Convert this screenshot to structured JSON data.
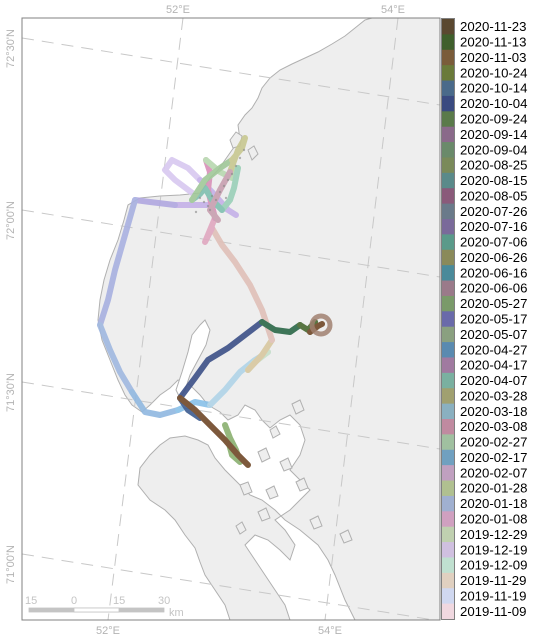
{
  "map": {
    "colors": {
      "water": "#ffffff",
      "land": "#eeeeee",
      "coast": "#b0b0b0",
      "grid": "#c8c8c8",
      "frame": "#808080"
    },
    "graticule": {
      "top": [
        "52°E",
        "54°E"
      ],
      "bottom": [
        "52°E",
        "54°E"
      ],
      "left": [
        "72°30'N",
        "72°00'N",
        "71°30'N",
        "71°00'N"
      ]
    },
    "scalebar": {
      "ticks": [
        "15",
        "0",
        "15",
        "30"
      ],
      "unit": "km"
    },
    "track": {
      "path_colors": [
        "#d8c8f0",
        "#c4b0e8",
        "#b0a8e0",
        "#a8b0e0",
        "#a0b8e0",
        "#90b8e0",
        "#88c0e8",
        "#b0d4e8",
        "#c8e0c8",
        "#d8c8a0",
        "#e0c0b8",
        "#e0a8c0",
        "#d890b8",
        "#b8d8b0",
        "#9ad0b8",
        "#80c0b0",
        "#a0c898",
        "#c8c890",
        "#c8a0b0",
        "#3c5088",
        "#3c5c90",
        "#2c6848",
        "#486830",
        "#704828"
      ],
      "end_marker_color": "#a08070"
    }
  },
  "legend": {
    "dates": [
      "2020-11-23",
      "2020-11-13",
      "2020-11-03",
      "2020-10-24",
      "2020-10-14",
      "2020-10-04",
      "2020-09-24",
      "2020-09-14",
      "2020-09-04",
      "2020-08-25",
      "2020-08-15",
      "2020-08-05",
      "2020-07-26",
      "2020-07-16",
      "2020-07-06",
      "2020-06-26",
      "2020-06-16",
      "2020-06-06",
      "2020-05-27",
      "2020-05-17",
      "2020-05-07",
      "2020-04-27",
      "2020-04-17",
      "2020-04-07",
      "2020-03-28",
      "2020-03-18",
      "2020-03-08",
      "2020-02-27",
      "2020-02-17",
      "2020-02-07",
      "2020-01-28",
      "2020-01-18",
      "2020-01-08",
      "2019-12-29",
      "2019-12-19",
      "2019-12-09",
      "2019-11-29",
      "2019-11-19",
      "2019-11-09"
    ],
    "swatch_colors": [
      "#5a4830",
      "#3f5f2c",
      "#7a5c3a",
      "#6a7a3a",
      "#4a6a8a",
      "#3a4a80",
      "#5a7a4a",
      "#8a6a8a",
      "#6a8a6a",
      "#7a8a5a",
      "#5a8a8a",
      "#8a5a7a",
      "#6a7a8a",
      "#7a6a9a",
      "#5a9a8a",
      "#8a8a5a",
      "#4a8a9a",
      "#9a7a8a",
      "#7a9a6a",
      "#6a6aaa",
      "#8aa080",
      "#5a8ab0",
      "#a07aa0",
      "#7ab0a0",
      "#a0a070",
      "#8ab0c0",
      "#c08aa0",
      "#a0c0a0",
      "#70a0c0",
      "#c0a0c0",
      "#b0c090",
      "#a0b0d0",
      "#d0a0c0",
      "#c0d0b0",
      "#d0c0e0",
      "#c0e0d0",
      "#e0d0c0",
      "#d0d8f0",
      "#f0d8e0"
    ]
  }
}
